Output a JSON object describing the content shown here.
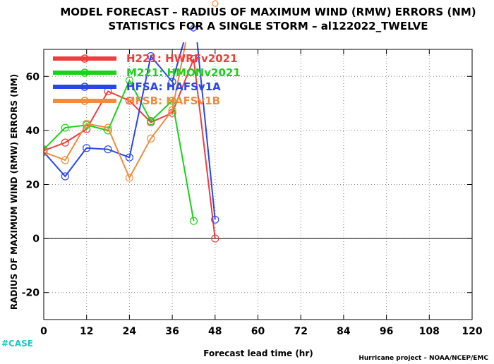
{
  "header": {
    "title_line1": "MODEL FORECAST – RADIUS OF MAXIMUM WIND (RMW) ERRORS (NM)",
    "title_line2": "STATISTICS FOR A SINGLE STORM – al122022_TWELVE"
  },
  "footer": {
    "credit": "Hurricane project – NOAA/NCEP/EMC",
    "case_label": "#CASE"
  },
  "chart_data": {
    "type": "line",
    "xlabel": "Forecast lead time (hr)",
    "ylabel": "RADIUS OF MAXIMUM WIND (RMW) ERRORS (NM)",
    "xlim": [
      0,
      120
    ],
    "ylim": [
      -30,
      70
    ],
    "xticks": [
      0,
      12,
      24,
      36,
      48,
      60,
      72,
      84,
      96,
      108,
      120
    ],
    "yticks": [
      -20,
      0,
      20,
      40,
      60
    ],
    "grid": true,
    "zero_line": true,
    "legend_position": "top-left",
    "series": [
      {
        "name": "H221: HWRFv2021",
        "color": "#f03c3c",
        "x": [
          0,
          6,
          12,
          18,
          24,
          30,
          36,
          42,
          48
        ],
        "y": [
          32.5,
          35.5,
          40.5,
          54.5,
          51,
          43,
          46.5,
          66.5,
          0
        ]
      },
      {
        "name": "M221: HMONv2021",
        "color": "#19d219",
        "x": [
          0,
          6,
          12,
          18,
          24,
          30,
          36,
          42
        ],
        "y": [
          33,
          41,
          42,
          40,
          58.5,
          43.5,
          51,
          6.5
        ]
      },
      {
        "name": "HFSA: HAFSv1A",
        "color": "#2a46e6",
        "x": [
          0,
          6,
          12,
          18,
          24,
          30,
          36,
          42,
          48
        ],
        "y": [
          32,
          23,
          33.5,
          33,
          30,
          67.5,
          58,
          85.5,
          7
        ]
      },
      {
        "name": "HFSB: HAFSv1B",
        "color": "#f08c3c",
        "x": [
          0,
          6,
          12,
          18,
          24,
          30,
          36,
          42
        ],
        "y": [
          32,
          29,
          42.5,
          41,
          22.5,
          37,
          47.5,
          87.5
        ]
      }
    ]
  }
}
